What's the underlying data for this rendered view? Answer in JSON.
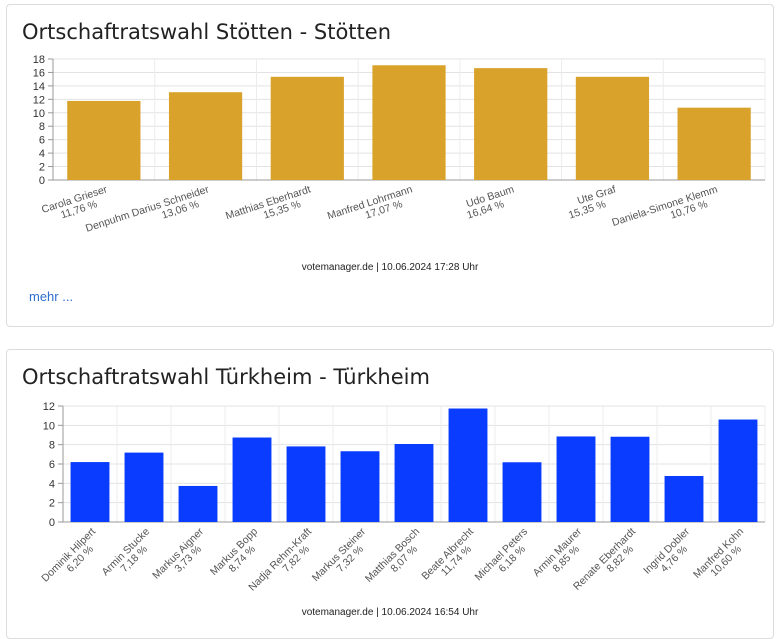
{
  "cards": [
    {
      "title": "Ortschaftratswahl Stötten - Stötten",
      "footer": "votemanager.de | 10.06.2024 17:28 Uhr",
      "more_label": "mehr ...",
      "color": "#d9a22a"
    },
    {
      "title": "Ortschaftratswahl Türkheim - Türkheim",
      "footer": "votemanager.de | 10.06.2024 16:54 Uhr",
      "color": "#0a3cff"
    }
  ],
  "chart_data": [
    {
      "type": "bar",
      "categories": [
        "Carola Grieser",
        "Denpuhm Darius Schneider",
        "Matthias Eberhardt",
        "Manfred Lohrmann",
        "Udo Baum",
        "Ute Graf",
        "Daniela-Simone Klemm"
      ],
      "values": [
        11.76,
        13.06,
        15.35,
        17.07,
        16.64,
        15.35,
        10.76
      ],
      "value_labels": [
        "11,76 %",
        "13,06 %",
        "15,35 %",
        "17,07 %",
        "16,64 %",
        "15,35 %",
        "10,76 %"
      ],
      "yticks": [
        0,
        2,
        4,
        6,
        8,
        10,
        12,
        14,
        16,
        18
      ],
      "ylim": [
        0,
        18
      ],
      "grid": true,
      "color": "#d9a22a"
    },
    {
      "type": "bar",
      "categories": [
        "Dominik Hilpert",
        "Armin Stucke",
        "Markus Aigner",
        "Markus Bopp",
        "Nadja Rehm-Kraft",
        "Markus Steiner",
        "Matthias Bosch",
        "Beate Albrecht",
        "Michael Peters",
        "Armin Maurer",
        "Renate Eberhardt",
        "Ingrid Dobler",
        "Manfred Kohn"
      ],
      "values": [
        6.2,
        7.18,
        3.73,
        8.74,
        7.82,
        7.32,
        8.07,
        11.74,
        6.18,
        8.85,
        8.82,
        4.76,
        10.6
      ],
      "value_labels": [
        "6,20 %",
        "7,18 %",
        "3,73 %",
        "8,74 %",
        "7,82 %",
        "7,32 %",
        "8,07 %",
        "11,74 %",
        "6,18 %",
        "8,85 %",
        "8,82 %",
        "4,76 %",
        "10,60 %"
      ],
      "yticks": [
        0,
        2,
        4,
        6,
        8,
        10,
        12
      ],
      "ylim": [
        0,
        12
      ],
      "grid": true,
      "color": "#0a3cff"
    }
  ]
}
